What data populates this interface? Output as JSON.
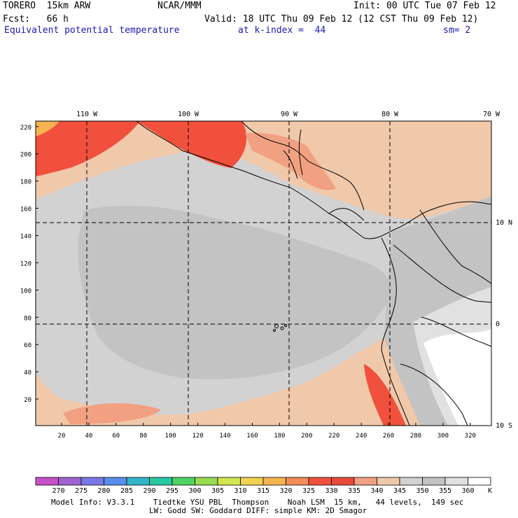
{
  "header": {
    "model": "TORERO  15km ARW",
    "center": "NCAR/MMM",
    "init": "Init: 00 UTC Tue 07 Feb 12",
    "fcst": "Fcst:   66 h",
    "valid": "Valid: 18 UTC Thu 09 Feb 12 (12 CST Thu 09 Feb 12)",
    "field": "Equivalent potential temperature",
    "level": "at k-index =  44",
    "smooth": "sm= 2"
  },
  "map": {
    "top_lon_labels": [
      "110 W",
      "100 W",
      "90 W",
      "80 W",
      "70 W"
    ],
    "right_lat_labels": [
      "10 N",
      "0",
      "10 S"
    ],
    "y_ticks": [
      "220",
      "200",
      "180",
      "160",
      "140",
      "120",
      "100",
      "80",
      "60",
      "40",
      "20"
    ],
    "x_ticks": [
      "20",
      "40",
      "60",
      "80",
      "100",
      "120",
      "140",
      "160",
      "180",
      "200",
      "220",
      "240",
      "260",
      "280",
      "300",
      "320"
    ]
  },
  "colorbar": {
    "labels": [
      "270",
      "275",
      "280",
      "285",
      "290",
      "295",
      "300",
      "305",
      "310",
      "315",
      "320",
      "325",
      "330",
      "335",
      "340",
      "345",
      "350",
      "355",
      "360"
    ],
    "unit": "K",
    "colors": [
      "#c850c8",
      "#a064d2",
      "#7878e6",
      "#5a8cf0",
      "#32b4c8",
      "#28c8a0",
      "#50d264",
      "#96dc50",
      "#d2e650",
      "#f0d250",
      "#f5b450",
      "#f58c5a",
      "#f0503c",
      "#e84a3a",
      "#f2a082",
      "#f0c8aa",
      "#d2d2d2",
      "#c3c3c3",
      "#e1e1e1",
      "#ffffff"
    ]
  },
  "footer": {
    "line1": "Model Info: V3.3.1    Tiedtke YSU PBL  Thompson    Noah LSM  15 km,   44 levels,  149 sec",
    "line2": "LW: Godd SW: Goddard DIFF: simple KM: 2D Smagor"
  }
}
